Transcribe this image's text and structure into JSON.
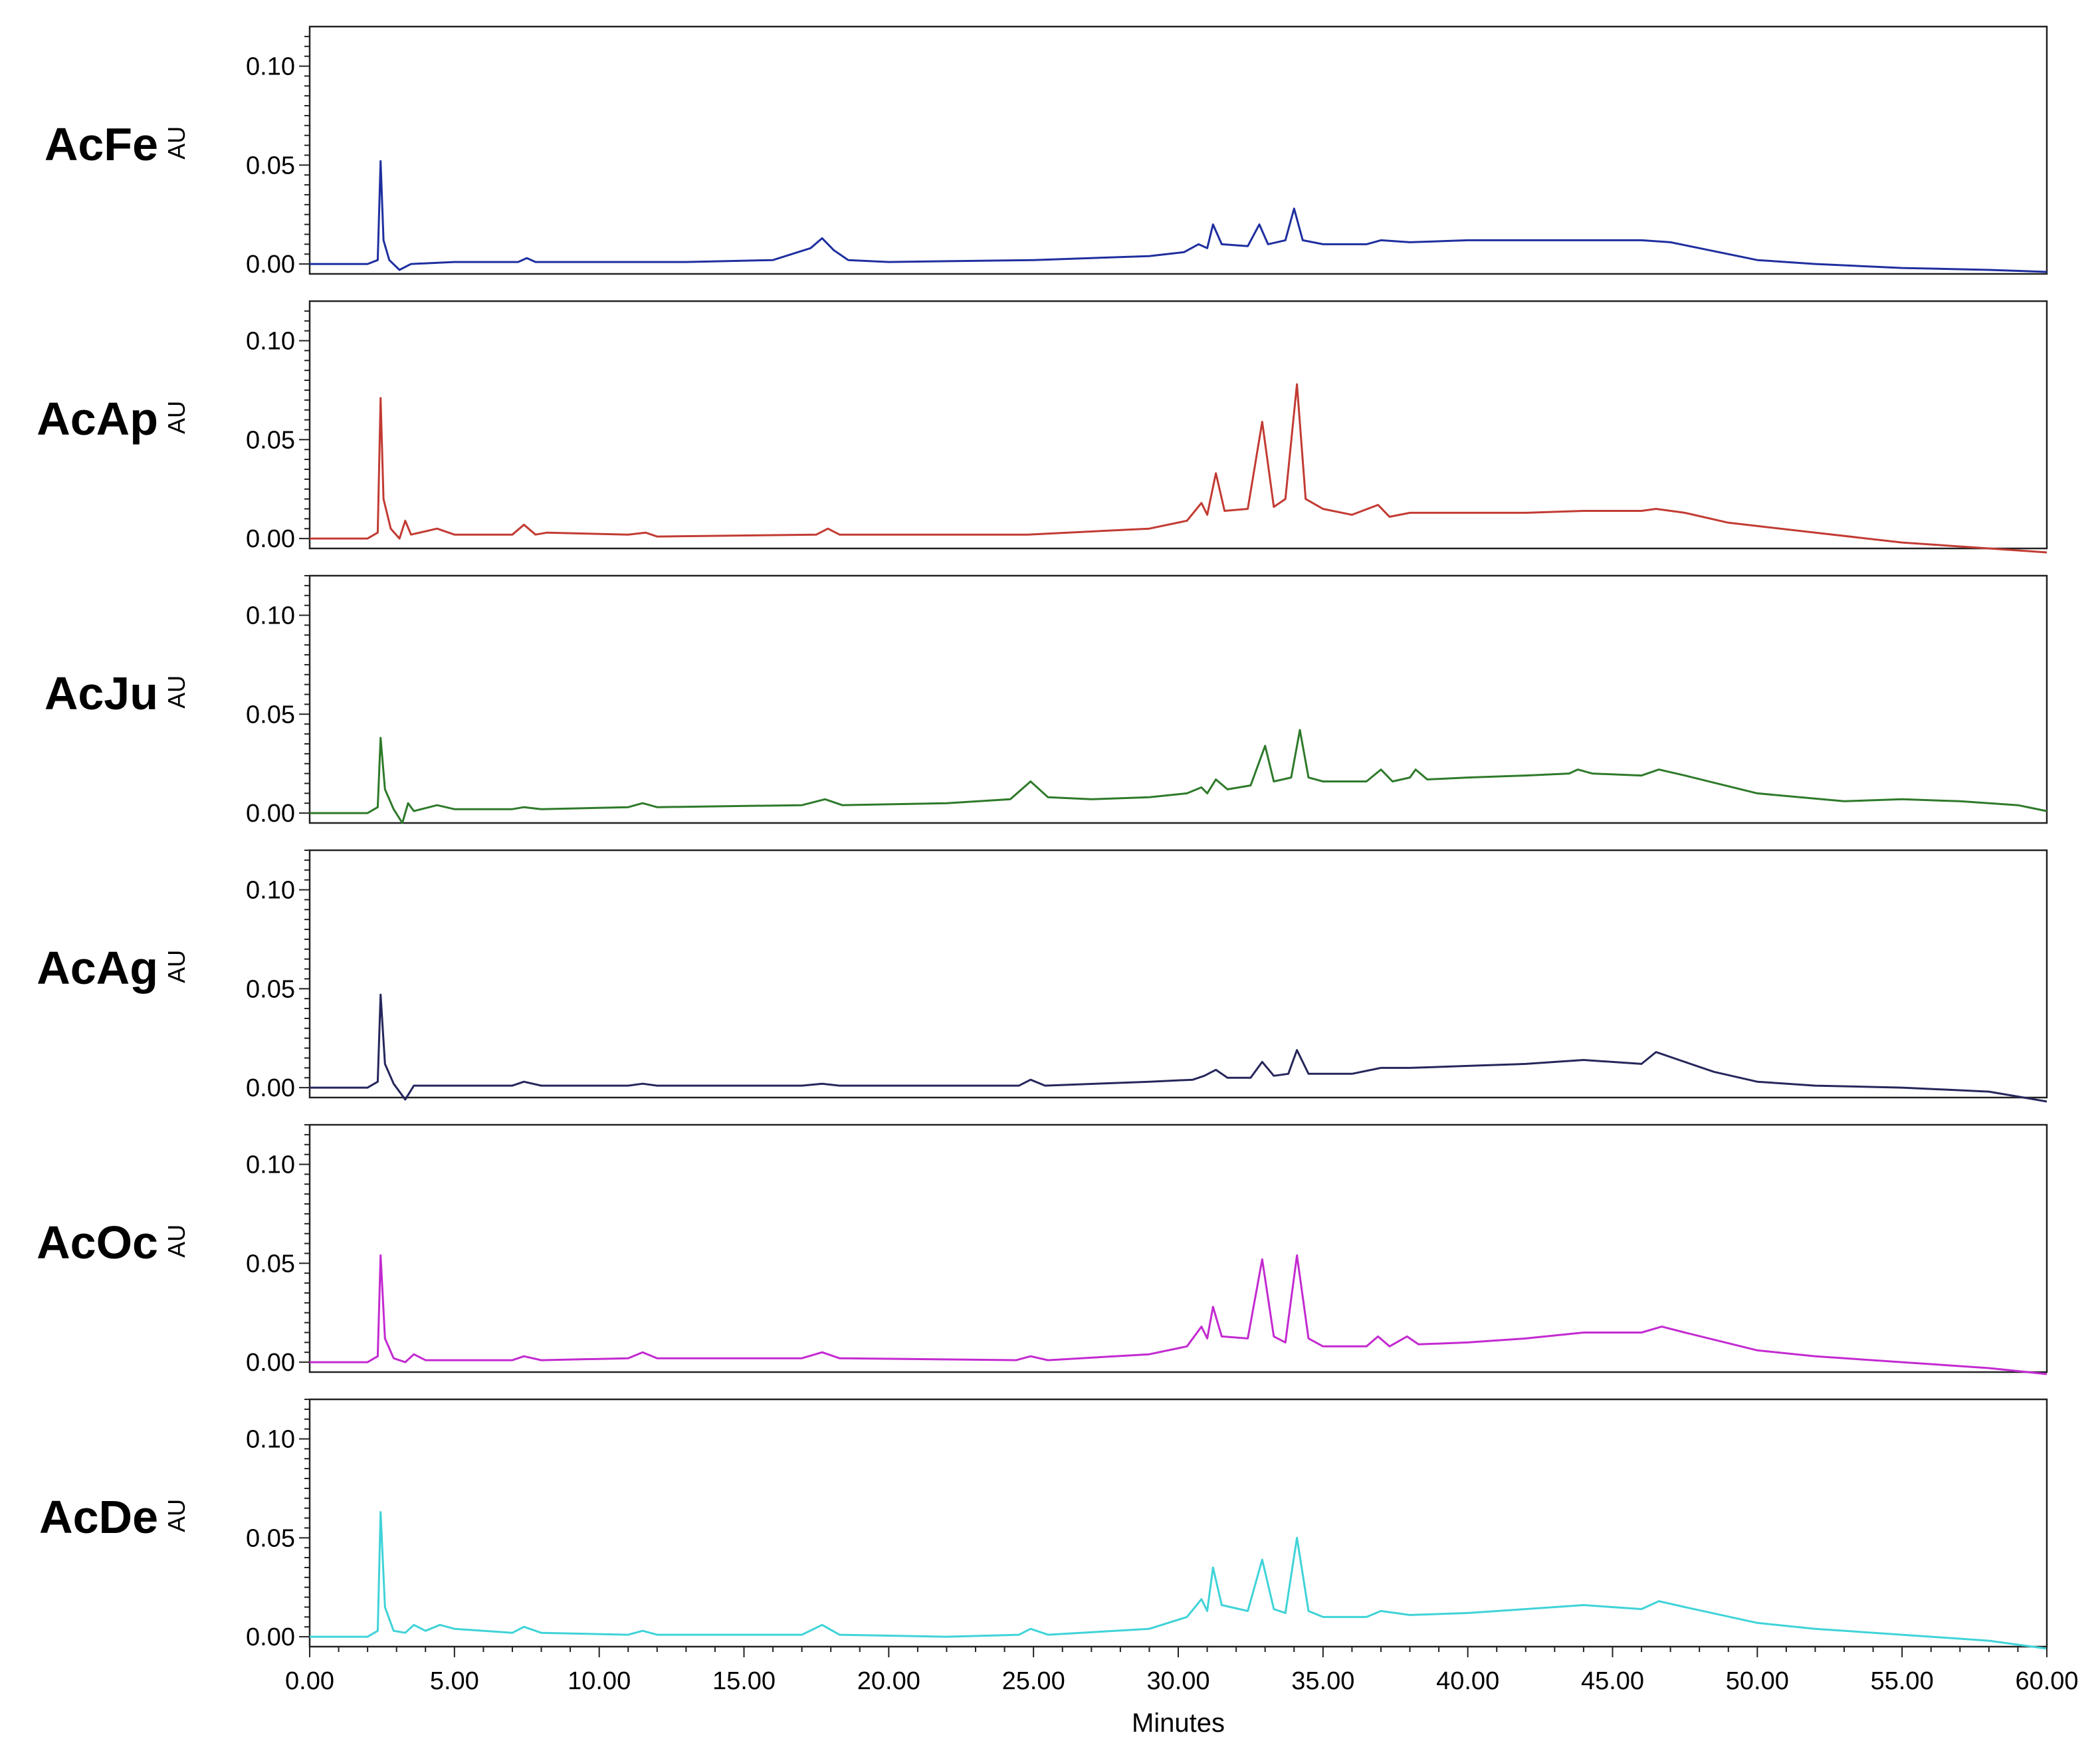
{
  "chart_data": {
    "type": "line",
    "title": "",
    "xlabel": "Minutes",
    "ylabel": "AU",
    "xlim": [
      0,
      60
    ],
    "ylim": [
      -0.005,
      0.12
    ],
    "x_tick_labels": [
      "0.00",
      "5.00",
      "10.00",
      "15.00",
      "20.00",
      "25.00",
      "30.00",
      "35.00",
      "40.00",
      "45.00",
      "50.00",
      "55.00",
      "60.00"
    ],
    "y_tick_labels": [
      "0.00",
      "0.05",
      "0.10"
    ],
    "y_ticks": [
      0,
      0.05,
      0.1
    ],
    "x_ticks": [
      0,
      5,
      10,
      15,
      20,
      25,
      30,
      35,
      40,
      45,
      50,
      55,
      60
    ],
    "series": [
      {
        "name": "AcFe",
        "color": "#1f2f9f",
        "points": [
          [
            0,
            0
          ],
          [
            2,
            0
          ],
          [
            2.35,
            0.002
          ],
          [
            2.45,
            0.052
          ],
          [
            2.55,
            0.012
          ],
          [
            2.75,
            0.002
          ],
          [
            3.1,
            -0.003
          ],
          [
            3.5,
            0
          ],
          [
            5,
            0.001
          ],
          [
            7.2,
            0.001
          ],
          [
            7.5,
            0.003
          ],
          [
            7.8,
            0.001
          ],
          [
            11,
            0.001
          ],
          [
            13,
            0.001
          ],
          [
            16,
            0.002
          ],
          [
            17.3,
            0.008
          ],
          [
            17.7,
            0.013
          ],
          [
            18.1,
            0.007
          ],
          [
            18.6,
            0.002
          ],
          [
            20,
            0.001
          ],
          [
            25,
            0.002
          ],
          [
            29,
            0.004
          ],
          [
            30.2,
            0.006
          ],
          [
            30.7,
            0.01
          ],
          [
            31.0,
            0.008
          ],
          [
            31.2,
            0.02
          ],
          [
            31.5,
            0.01
          ],
          [
            32.4,
            0.009
          ],
          [
            32.8,
            0.02
          ],
          [
            33.1,
            0.01
          ],
          [
            33.7,
            0.012
          ],
          [
            34.0,
            0.028
          ],
          [
            34.3,
            0.012
          ],
          [
            35,
            0.01
          ],
          [
            36.5,
            0.01
          ],
          [
            37,
            0.012
          ],
          [
            38,
            0.011
          ],
          [
            40,
            0.012
          ],
          [
            42,
            0.012
          ],
          [
            44,
            0.012
          ],
          [
            46,
            0.012
          ],
          [
            47,
            0.011
          ],
          [
            48,
            0.008
          ],
          [
            50,
            0.002
          ],
          [
            52,
            0
          ],
          [
            55,
            -0.002
          ],
          [
            58,
            -0.003
          ],
          [
            60,
            -0.004
          ]
        ]
      },
      {
        "name": "AcAp",
        "color": "#c23b33",
        "points": [
          [
            0,
            0
          ],
          [
            2,
            0
          ],
          [
            2.35,
            0.003
          ],
          [
            2.45,
            0.071
          ],
          [
            2.55,
            0.02
          ],
          [
            2.8,
            0.005
          ],
          [
            3.1,
            0
          ],
          [
            3.3,
            0.009
          ],
          [
            3.5,
            0.002
          ],
          [
            4.4,
            0.005
          ],
          [
            5,
            0.002
          ],
          [
            7,
            0.002
          ],
          [
            7.4,
            0.007
          ],
          [
            7.8,
            0.002
          ],
          [
            8.2,
            0.003
          ],
          [
            11,
            0.002
          ],
          [
            11.6,
            0.003
          ],
          [
            12,
            0.001
          ],
          [
            17.5,
            0.002
          ],
          [
            17.9,
            0.005
          ],
          [
            18.3,
            0.002
          ],
          [
            24.8,
            0.002
          ],
          [
            29,
            0.005
          ],
          [
            30.3,
            0.009
          ],
          [
            30.8,
            0.018
          ],
          [
            31.0,
            0.012
          ],
          [
            31.3,
            0.033
          ],
          [
            31.6,
            0.014
          ],
          [
            32.4,
            0.015
          ],
          [
            32.9,
            0.059
          ],
          [
            33.3,
            0.016
          ],
          [
            33.7,
            0.02
          ],
          [
            34.1,
            0.078
          ],
          [
            34.4,
            0.02
          ],
          [
            35,
            0.015
          ],
          [
            36,
            0.012
          ],
          [
            36.9,
            0.017
          ],
          [
            37.3,
            0.011
          ],
          [
            38,
            0.013
          ],
          [
            40,
            0.013
          ],
          [
            42,
            0.013
          ],
          [
            44,
            0.014
          ],
          [
            46,
            0.014
          ],
          [
            46.5,
            0.015
          ],
          [
            47.5,
            0.013
          ],
          [
            49,
            0.008
          ],
          [
            52,
            0.003
          ],
          [
            55,
            -0.002
          ],
          [
            58,
            -0.005
          ],
          [
            60,
            -0.007
          ]
        ]
      },
      {
        "name": "AcJu",
        "color": "#2e7a2a",
        "points": [
          [
            0,
            0
          ],
          [
            2,
            0
          ],
          [
            2.35,
            0.003
          ],
          [
            2.45,
            0.038
          ],
          [
            2.6,
            0.012
          ],
          [
            2.9,
            0.002
          ],
          [
            3.2,
            -0.005
          ],
          [
            3.4,
            0.005
          ],
          [
            3.6,
            0.001
          ],
          [
            4.4,
            0.004
          ],
          [
            5,
            0.002
          ],
          [
            7,
            0.002
          ],
          [
            7.4,
            0.003
          ],
          [
            8,
            0.002
          ],
          [
            11,
            0.003
          ],
          [
            11.5,
            0.005
          ],
          [
            12,
            0.003
          ],
          [
            17,
            0.004
          ],
          [
            17.8,
            0.007
          ],
          [
            18.4,
            0.004
          ],
          [
            22,
            0.005
          ],
          [
            24.2,
            0.007
          ],
          [
            24.9,
            0.016
          ],
          [
            25.5,
            0.008
          ],
          [
            27,
            0.007
          ],
          [
            29,
            0.008
          ],
          [
            30.3,
            0.01
          ],
          [
            30.8,
            0.013
          ],
          [
            31.0,
            0.01
          ],
          [
            31.3,
            0.017
          ],
          [
            31.7,
            0.012
          ],
          [
            32.5,
            0.014
          ],
          [
            33.0,
            0.034
          ],
          [
            33.3,
            0.016
          ],
          [
            33.9,
            0.018
          ],
          [
            34.2,
            0.042
          ],
          [
            34.5,
            0.018
          ],
          [
            35,
            0.016
          ],
          [
            36.5,
            0.016
          ],
          [
            37,
            0.022
          ],
          [
            37.4,
            0.016
          ],
          [
            38,
            0.018
          ],
          [
            38.2,
            0.022
          ],
          [
            38.6,
            0.017
          ],
          [
            40,
            0.018
          ],
          [
            42,
            0.019
          ],
          [
            43.5,
            0.02
          ],
          [
            43.8,
            0.022
          ],
          [
            44.3,
            0.02
          ],
          [
            46,
            0.019
          ],
          [
            46.6,
            0.022
          ],
          [
            47.5,
            0.019
          ],
          [
            50,
            0.01
          ],
          [
            53,
            0.006
          ],
          [
            55,
            0.007
          ],
          [
            57,
            0.006
          ],
          [
            59,
            0.004
          ],
          [
            60,
            0.001
          ]
        ]
      },
      {
        "name": "AcAg",
        "color": "#26265c",
        "points": [
          [
            0,
            0
          ],
          [
            2,
            0
          ],
          [
            2.35,
            0.003
          ],
          [
            2.45,
            0.047
          ],
          [
            2.6,
            0.012
          ],
          [
            2.9,
            0.002
          ],
          [
            3.3,
            -0.006
          ],
          [
            3.6,
            0.001
          ],
          [
            4.5,
            0.001
          ],
          [
            7,
            0.001
          ],
          [
            7.4,
            0.003
          ],
          [
            8,
            0.001
          ],
          [
            11,
            0.001
          ],
          [
            11.5,
            0.002
          ],
          [
            12,
            0.001
          ],
          [
            17,
            0.001
          ],
          [
            17.7,
            0.002
          ],
          [
            18.3,
            0.001
          ],
          [
            24.5,
            0.001
          ],
          [
            24.9,
            0.004
          ],
          [
            25.4,
            0.001
          ],
          [
            29,
            0.003
          ],
          [
            30.5,
            0.004
          ],
          [
            30.9,
            0.006
          ],
          [
            31.3,
            0.009
          ],
          [
            31.7,
            0.005
          ],
          [
            32.5,
            0.005
          ],
          [
            32.9,
            0.013
          ],
          [
            33.3,
            0.006
          ],
          [
            33.8,
            0.007
          ],
          [
            34.1,
            0.019
          ],
          [
            34.5,
            0.007
          ],
          [
            36,
            0.007
          ],
          [
            37,
            0.01
          ],
          [
            38,
            0.01
          ],
          [
            40,
            0.011
          ],
          [
            42,
            0.012
          ],
          [
            44,
            0.014
          ],
          [
            46,
            0.012
          ],
          [
            46.5,
            0.018
          ],
          [
            47.3,
            0.014
          ],
          [
            48.5,
            0.008
          ],
          [
            50,
            0.003
          ],
          [
            52,
            0.001
          ],
          [
            55,
            0
          ],
          [
            58,
            -0.002
          ],
          [
            60,
            -0.007
          ]
        ]
      },
      {
        "name": "AcOc",
        "color": "#c32ad0",
        "points": [
          [
            0,
            0
          ],
          [
            2,
            0
          ],
          [
            2.35,
            0.003
          ],
          [
            2.45,
            0.054
          ],
          [
            2.6,
            0.012
          ],
          [
            2.9,
            0.002
          ],
          [
            3.3,
            0
          ],
          [
            3.6,
            0.004
          ],
          [
            4,
            0.001
          ],
          [
            7,
            0.001
          ],
          [
            7.4,
            0.003
          ],
          [
            8,
            0.001
          ],
          [
            11,
            0.002
          ],
          [
            11.5,
            0.005
          ],
          [
            12,
            0.002
          ],
          [
            17,
            0.002
          ],
          [
            17.7,
            0.005
          ],
          [
            18.3,
            0.002
          ],
          [
            24.4,
            0.001
          ],
          [
            24.9,
            0.003
          ],
          [
            25.5,
            0.001
          ],
          [
            29,
            0.004
          ],
          [
            30.3,
            0.008
          ],
          [
            30.8,
            0.018
          ],
          [
            31.0,
            0.012
          ],
          [
            31.2,
            0.028
          ],
          [
            31.5,
            0.013
          ],
          [
            32.4,
            0.012
          ],
          [
            32.9,
            0.052
          ],
          [
            33.3,
            0.013
          ],
          [
            33.7,
            0.01
          ],
          [
            34.1,
            0.054
          ],
          [
            34.5,
            0.012
          ],
          [
            35,
            0.008
          ],
          [
            36.5,
            0.008
          ],
          [
            36.9,
            0.013
          ],
          [
            37.3,
            0.008
          ],
          [
            37.9,
            0.013
          ],
          [
            38.3,
            0.009
          ],
          [
            40,
            0.01
          ],
          [
            42,
            0.012
          ],
          [
            44,
            0.015
          ],
          [
            46,
            0.015
          ],
          [
            46.7,
            0.018
          ],
          [
            47.5,
            0.015
          ],
          [
            50,
            0.006
          ],
          [
            52,
            0.003
          ],
          [
            55,
            0
          ],
          [
            58,
            -0.003
          ],
          [
            60,
            -0.006
          ]
        ]
      },
      {
        "name": "AcDe",
        "color": "#3fd3d8",
        "points": [
          [
            0,
            0
          ],
          [
            2,
            0
          ],
          [
            2.35,
            0.003
          ],
          [
            2.45,
            0.063
          ],
          [
            2.6,
            0.015
          ],
          [
            2.9,
            0.003
          ],
          [
            3.3,
            0.002
          ],
          [
            3.6,
            0.006
          ],
          [
            4,
            0.003
          ],
          [
            4.5,
            0.006
          ],
          [
            5,
            0.004
          ],
          [
            7,
            0.002
          ],
          [
            7.4,
            0.005
          ],
          [
            8,
            0.002
          ],
          [
            11,
            0.001
          ],
          [
            11.5,
            0.003
          ],
          [
            12,
            0.001
          ],
          [
            17,
            0.001
          ],
          [
            17.7,
            0.006
          ],
          [
            18.3,
            0.001
          ],
          [
            22,
            0
          ],
          [
            24.5,
            0.001
          ],
          [
            24.9,
            0.004
          ],
          [
            25.5,
            0.001
          ],
          [
            29,
            0.004
          ],
          [
            30.3,
            0.01
          ],
          [
            30.8,
            0.019
          ],
          [
            31.0,
            0.013
          ],
          [
            31.2,
            0.035
          ],
          [
            31.5,
            0.016
          ],
          [
            32.4,
            0.013
          ],
          [
            32.9,
            0.039
          ],
          [
            33.3,
            0.014
          ],
          [
            33.7,
            0.012
          ],
          [
            34.1,
            0.05
          ],
          [
            34.5,
            0.013
          ],
          [
            35,
            0.01
          ],
          [
            36.5,
            0.01
          ],
          [
            37,
            0.013
          ],
          [
            38,
            0.011
          ],
          [
            40,
            0.012
          ],
          [
            42,
            0.014
          ],
          [
            44,
            0.016
          ],
          [
            46,
            0.014
          ],
          [
            46.6,
            0.018
          ],
          [
            47.5,
            0.015
          ],
          [
            50,
            0.007
          ],
          [
            52,
            0.004
          ],
          [
            55,
            0.001
          ],
          [
            58,
            -0.002
          ],
          [
            60,
            -0.006
          ]
        ]
      }
    ]
  }
}
